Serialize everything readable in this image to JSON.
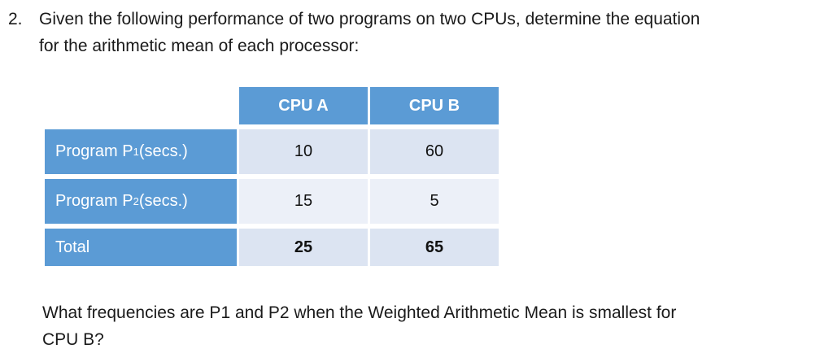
{
  "problem": {
    "number": "2.",
    "lines": [
      "Given the following performance of two programs on two CPUs, determine the equation",
      "for the arithmetic mean of each processor:"
    ]
  },
  "table": {
    "column_headers": [
      "CPU A",
      "CPU B"
    ],
    "rows": [
      {
        "label_main": "Program P",
        "label_sub": "1",
        "label_suffix": " (secs.)",
        "cpu_a": "10",
        "cpu_b": "60"
      },
      {
        "label_main": "Program P",
        "label_sub": "2",
        "label_suffix": " (secs.)",
        "cpu_a": "15",
        "cpu_b": "5"
      },
      {
        "label_main": "Total",
        "label_sub": "",
        "label_suffix": "",
        "cpu_a": "25",
        "cpu_b": "65"
      }
    ]
  },
  "question": {
    "lines": [
      "What frequencies are P1 and P2 when the Weighted Arithmetic Mean is smallest for",
      "CPU B?"
    ]
  },
  "colors": {
    "header_blue": "#5b9bd5",
    "band_light": "#dce4f2",
    "band_lighter": "#ecf0f8",
    "text_dark": "#1a1a1a"
  }
}
